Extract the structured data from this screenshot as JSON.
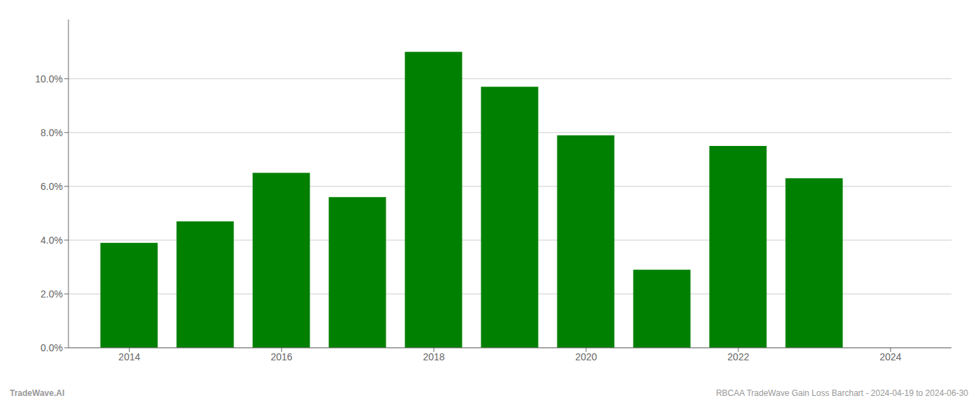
{
  "chart_data": {
    "type": "bar",
    "x": [
      2014,
      2015,
      2016,
      2017,
      2018,
      2019,
      2020,
      2021,
      2022,
      2023
    ],
    "values": [
      0.039,
      0.047,
      0.065,
      0.056,
      0.11,
      0.097,
      0.079,
      0.029,
      0.075,
      0.063
    ],
    "color": "#008000",
    "xlim": [
      2013.2,
      2024.8
    ],
    "xticks": [
      2014,
      2016,
      2018,
      2020,
      2022,
      2024
    ],
    "ylim": [
      0,
      0.122
    ],
    "yticks": [
      {
        "value": 0.0,
        "label": "0.0%"
      },
      {
        "value": 0.02,
        "label": "2.0%"
      },
      {
        "value": 0.04,
        "label": "4.0%"
      },
      {
        "value": 0.06,
        "label": "6.0%"
      },
      {
        "value": 0.08,
        "label": "8.0%"
      },
      {
        "value": 0.1,
        "label": "10.0%"
      }
    ],
    "grid": true,
    "annotations": [
      "TradeWave.AI",
      "RBCAA TradeWave Gain Loss Barchart - 2024-04-19 to 2024-06-30"
    ]
  }
}
